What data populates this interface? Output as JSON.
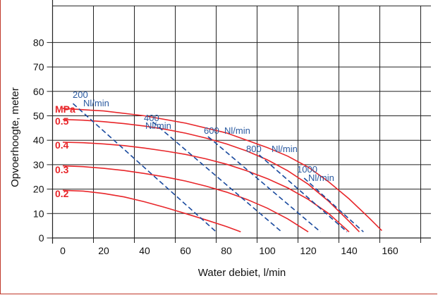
{
  "chart_data": {
    "type": "line",
    "xlabel": "Water debiet, l/min",
    "ylabel": "Opvoerhoogte, meter",
    "xlim": [
      0,
      180
    ],
    "ylim": [
      0,
      100
    ],
    "x_ticks": [
      "0",
      "20",
      "40",
      "60",
      "80",
      "100",
      "120",
      "140",
      "160"
    ],
    "y_ticks": [
      "0",
      "10",
      "20",
      "30",
      "40",
      "50",
      "60",
      "70",
      "80"
    ],
    "pressure_unit": "MPa",
    "pressure_series": [
      {
        "name": "0.2",
        "color": "#e8262a",
        "x": [
          0,
          10,
          20,
          30,
          40,
          50,
          60,
          70,
          80,
          87
        ],
        "y": [
          19.5,
          19.2,
          18.2,
          16.8,
          14.8,
          12.5,
          10,
          7.4,
          4.7,
          2.5
        ]
      },
      {
        "name": "0.3",
        "color": "#e8262a",
        "x": [
          0,
          10,
          20,
          30,
          40,
          50,
          60,
          70,
          80,
          90,
          100,
          110,
          120
        ],
        "y": [
          29.5,
          29.2,
          28.5,
          27.6,
          26.4,
          25,
          23.3,
          21.2,
          18.8,
          15.8,
          12.2,
          7.8,
          2.5
        ]
      },
      {
        "name": "0.4",
        "color": "#e8262a",
        "x": [
          0,
          10,
          20,
          30,
          40,
          50,
          60,
          70,
          80,
          90,
          100,
          110,
          120,
          130,
          140
        ],
        "y": [
          39.2,
          39,
          38.5,
          37.8,
          36.8,
          35.6,
          34.2,
          32.4,
          30.2,
          27.5,
          24.3,
          20.5,
          15.8,
          10,
          2.5
        ]
      },
      {
        "name": "0.5",
        "color": "#e8262a",
        "x": [
          0,
          10,
          20,
          30,
          40,
          50,
          60,
          70,
          80,
          90,
          100,
          110,
          120,
          130,
          140,
          145
        ],
        "y": [
          48.5,
          48.2,
          47.6,
          46.8,
          45.8,
          44.5,
          42.9,
          40.9,
          38.5,
          35.6,
          32,
          27.5,
          22,
          15,
          6.8,
          2.5
        ]
      },
      {
        "name": "",
        "color": "#e8262a",
        "x": [
          0,
          20,
          40,
          60,
          80,
          100,
          110,
          120,
          130,
          140,
          150,
          156
        ],
        "y": [
          53,
          52,
          50,
          47,
          43,
          37,
          33.5,
          29,
          23,
          16,
          8,
          3
        ]
      }
    ],
    "airflow_series": [
      {
        "name": "200",
        "unit": "Nl/min",
        "color": "#1a4a9e",
        "x": [
          5,
          75
        ],
        "y": [
          55,
          2.5
        ]
      },
      {
        "name": "400",
        "unit": "Nl/min",
        "color": "#1a4a9e",
        "x": [
          44,
          107
        ],
        "y": [
          47.5,
          2.5
        ]
      },
      {
        "name": "600",
        "unit": "Nl/min",
        "color": "#1a4a9e",
        "x": [
          71,
          126
        ],
        "y": [
          41.5,
          2.5
        ]
      },
      {
        "name": "800",
        "unit": "Nl/min",
        "color": "#1a4a9e",
        "x": [
          96,
          139
        ],
        "y": [
          34,
          2.5
        ]
      },
      {
        "name": "1000",
        "unit": "Nl/min",
        "color": "#1a4a9e",
        "x": [
          118,
          147
        ],
        "y": [
          24.5,
          2.5
        ]
      }
    ]
  }
}
